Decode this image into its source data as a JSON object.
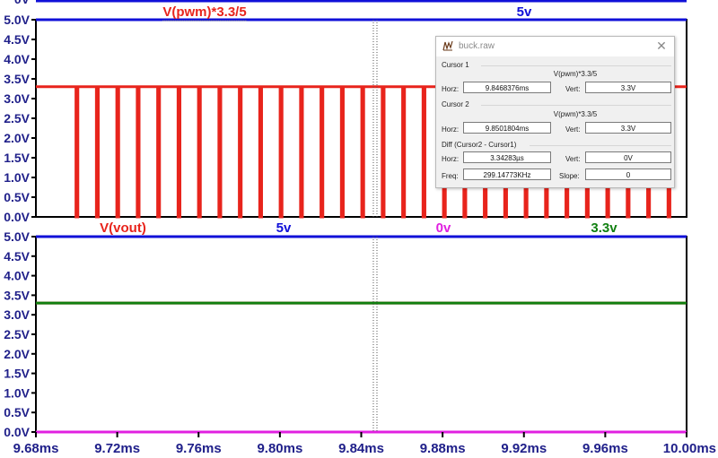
{
  "chart_data": [
    {
      "type": "line",
      "title": "",
      "ylim": [
        0,
        5
      ],
      "yticks": [
        "0.0V",
        "0.5V",
        "1.0V",
        "1.5V",
        "2.0V",
        "2.5V",
        "3.0V",
        "3.5V",
        "4.0V",
        "4.5V",
        "5.0V"
      ],
      "xlim": [
        9.68,
        10.0
      ],
      "x_unit": "ms",
      "y_unit": "V",
      "grid": false,
      "trace_labels": [
        {
          "text": "V(pwm)*3.3/5",
          "color": "#e8241c"
        },
        {
          "text": "5v",
          "color": "#1010d8"
        }
      ],
      "series": [
        {
          "name": "V(pwm)*3.3/5",
          "color": "#e8241c",
          "kind": "pwm",
          "high": 3.3,
          "low": 0,
          "period": 0.01004,
          "low_width": 0.00094,
          "first_fall": 9.6997
        },
        {
          "name": "5v",
          "color": "#1010d8",
          "kind": "constant",
          "value": 5.0
        }
      ]
    },
    {
      "type": "line",
      "title": "",
      "ylim": [
        0,
        5
      ],
      "yticks": [
        "0.0V",
        "0.5V",
        "1.0V",
        "1.5V",
        "2.0V",
        "2.5V",
        "3.0V",
        "3.5V",
        "4.0V",
        "4.5V",
        "5.0V"
      ],
      "xlim": [
        9.68,
        10.0
      ],
      "x_unit": "ms",
      "y_unit": "V",
      "grid": false,
      "trace_labels": [
        {
          "text": "V(vout)",
          "color": "#e8241c"
        },
        {
          "text": "5v",
          "color": "#1010d8"
        },
        {
          "text": "0v",
          "color": "#e020e0"
        },
        {
          "text": "3.3v",
          "color": "#108010"
        }
      ],
      "series": [
        {
          "name": "V(vout)",
          "color": "#e8241c",
          "kind": "constant",
          "value": 3.3
        },
        {
          "name": "5v",
          "color": "#1010d8",
          "kind": "constant",
          "value": 5.0
        },
        {
          "name": "0v",
          "color": "#e020e0",
          "kind": "constant",
          "value": 0.0
        },
        {
          "name": "3.3v",
          "color": "#108010",
          "kind": "constant",
          "value": 3.3
        }
      ]
    }
  ],
  "x_axis": {
    "ticks": [
      "9.68ms",
      "9.72ms",
      "9.76ms",
      "9.80ms",
      "9.84ms",
      "9.88ms",
      "9.92ms",
      "9.96ms",
      "10.00ms"
    ]
  },
  "cursor_marker_x": 9.8468376,
  "top_partial_tick": "0V",
  "cursor_dialog": {
    "title": "buck.raw",
    "cursor1": {
      "group": "Cursor 1",
      "expr": "V(pwm)*3.3/5",
      "horz_label": "Horz:",
      "horz": "9.8468376ms",
      "vert_label": "Vert:",
      "vert": "3.3V"
    },
    "cursor2": {
      "group": "Cursor 2",
      "expr": "V(pwm)*3.3/5",
      "horz_label": "Horz:",
      "horz": "9.8501804ms",
      "vert_label": "Vert:",
      "vert": "3.3V"
    },
    "diff": {
      "group": "Diff (Cursor2 - Cursor1)",
      "horz_label": "Horz:",
      "horz": "3.34283µs",
      "vert_label": "Vert:",
      "vert": "0V",
      "freq_label": "Freq:",
      "freq": "299.14773KHz",
      "slope_label": "Slope:",
      "slope": "0"
    }
  }
}
